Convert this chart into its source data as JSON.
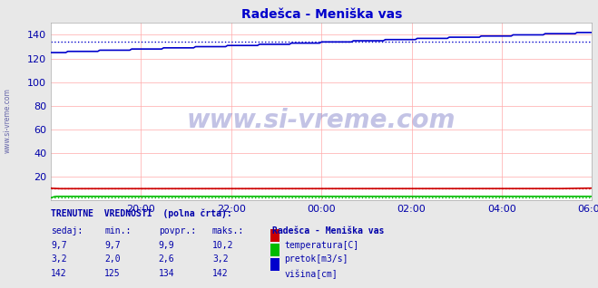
{
  "title": "Radešca - Meniška vas",
  "title_color": "#0000cc",
  "bg_color": "#e8e8e8",
  "plot_bg_color": "#ffffff",
  "grid_color": "#ffaaaa",
  "x_ticks": [
    "20:00",
    "22:00",
    "00:00",
    "02:00",
    "04:00",
    "06:00"
  ],
  "x_tick_positions": [
    24,
    48,
    72,
    96,
    120,
    144
  ],
  "n_points": 289,
  "ylim": [
    0,
    150
  ],
  "yticks": [
    20,
    40,
    60,
    80,
    100,
    120,
    140
  ],
  "temp_avg": 9.9,
  "temp_color": "#cc0000",
  "pretok_avg": 2.6,
  "pretok_color": "#00bb00",
  "visina_avg": 134,
  "visina_color": "#0000cc",
  "watermark": "www.si-vreme.com",
  "side_label": "www.si-vreme.com",
  "text_color": "#0000aa",
  "header_color": "#0000aa",
  "table_header": "TRENUTNE  VREDNOSTI  (polna črta):",
  "col1": "sedaj:",
  "col2": "min.:",
  "col3": "povpr.:",
  "col4": "maks.:",
  "station_label": "Radešca - Meniška vas",
  "row1_vals": [
    "9,7",
    "9,7",
    "9,9",
    "10,2"
  ],
  "row2_vals": [
    "3,2",
    "2,0",
    "2,6",
    "3,2"
  ],
  "row3_vals": [
    "142",
    "125",
    "134",
    "142"
  ],
  "row1_label": "temperatura[C]",
  "row2_label": "pretok[m3/s]",
  "row3_label": "višina[cm]"
}
